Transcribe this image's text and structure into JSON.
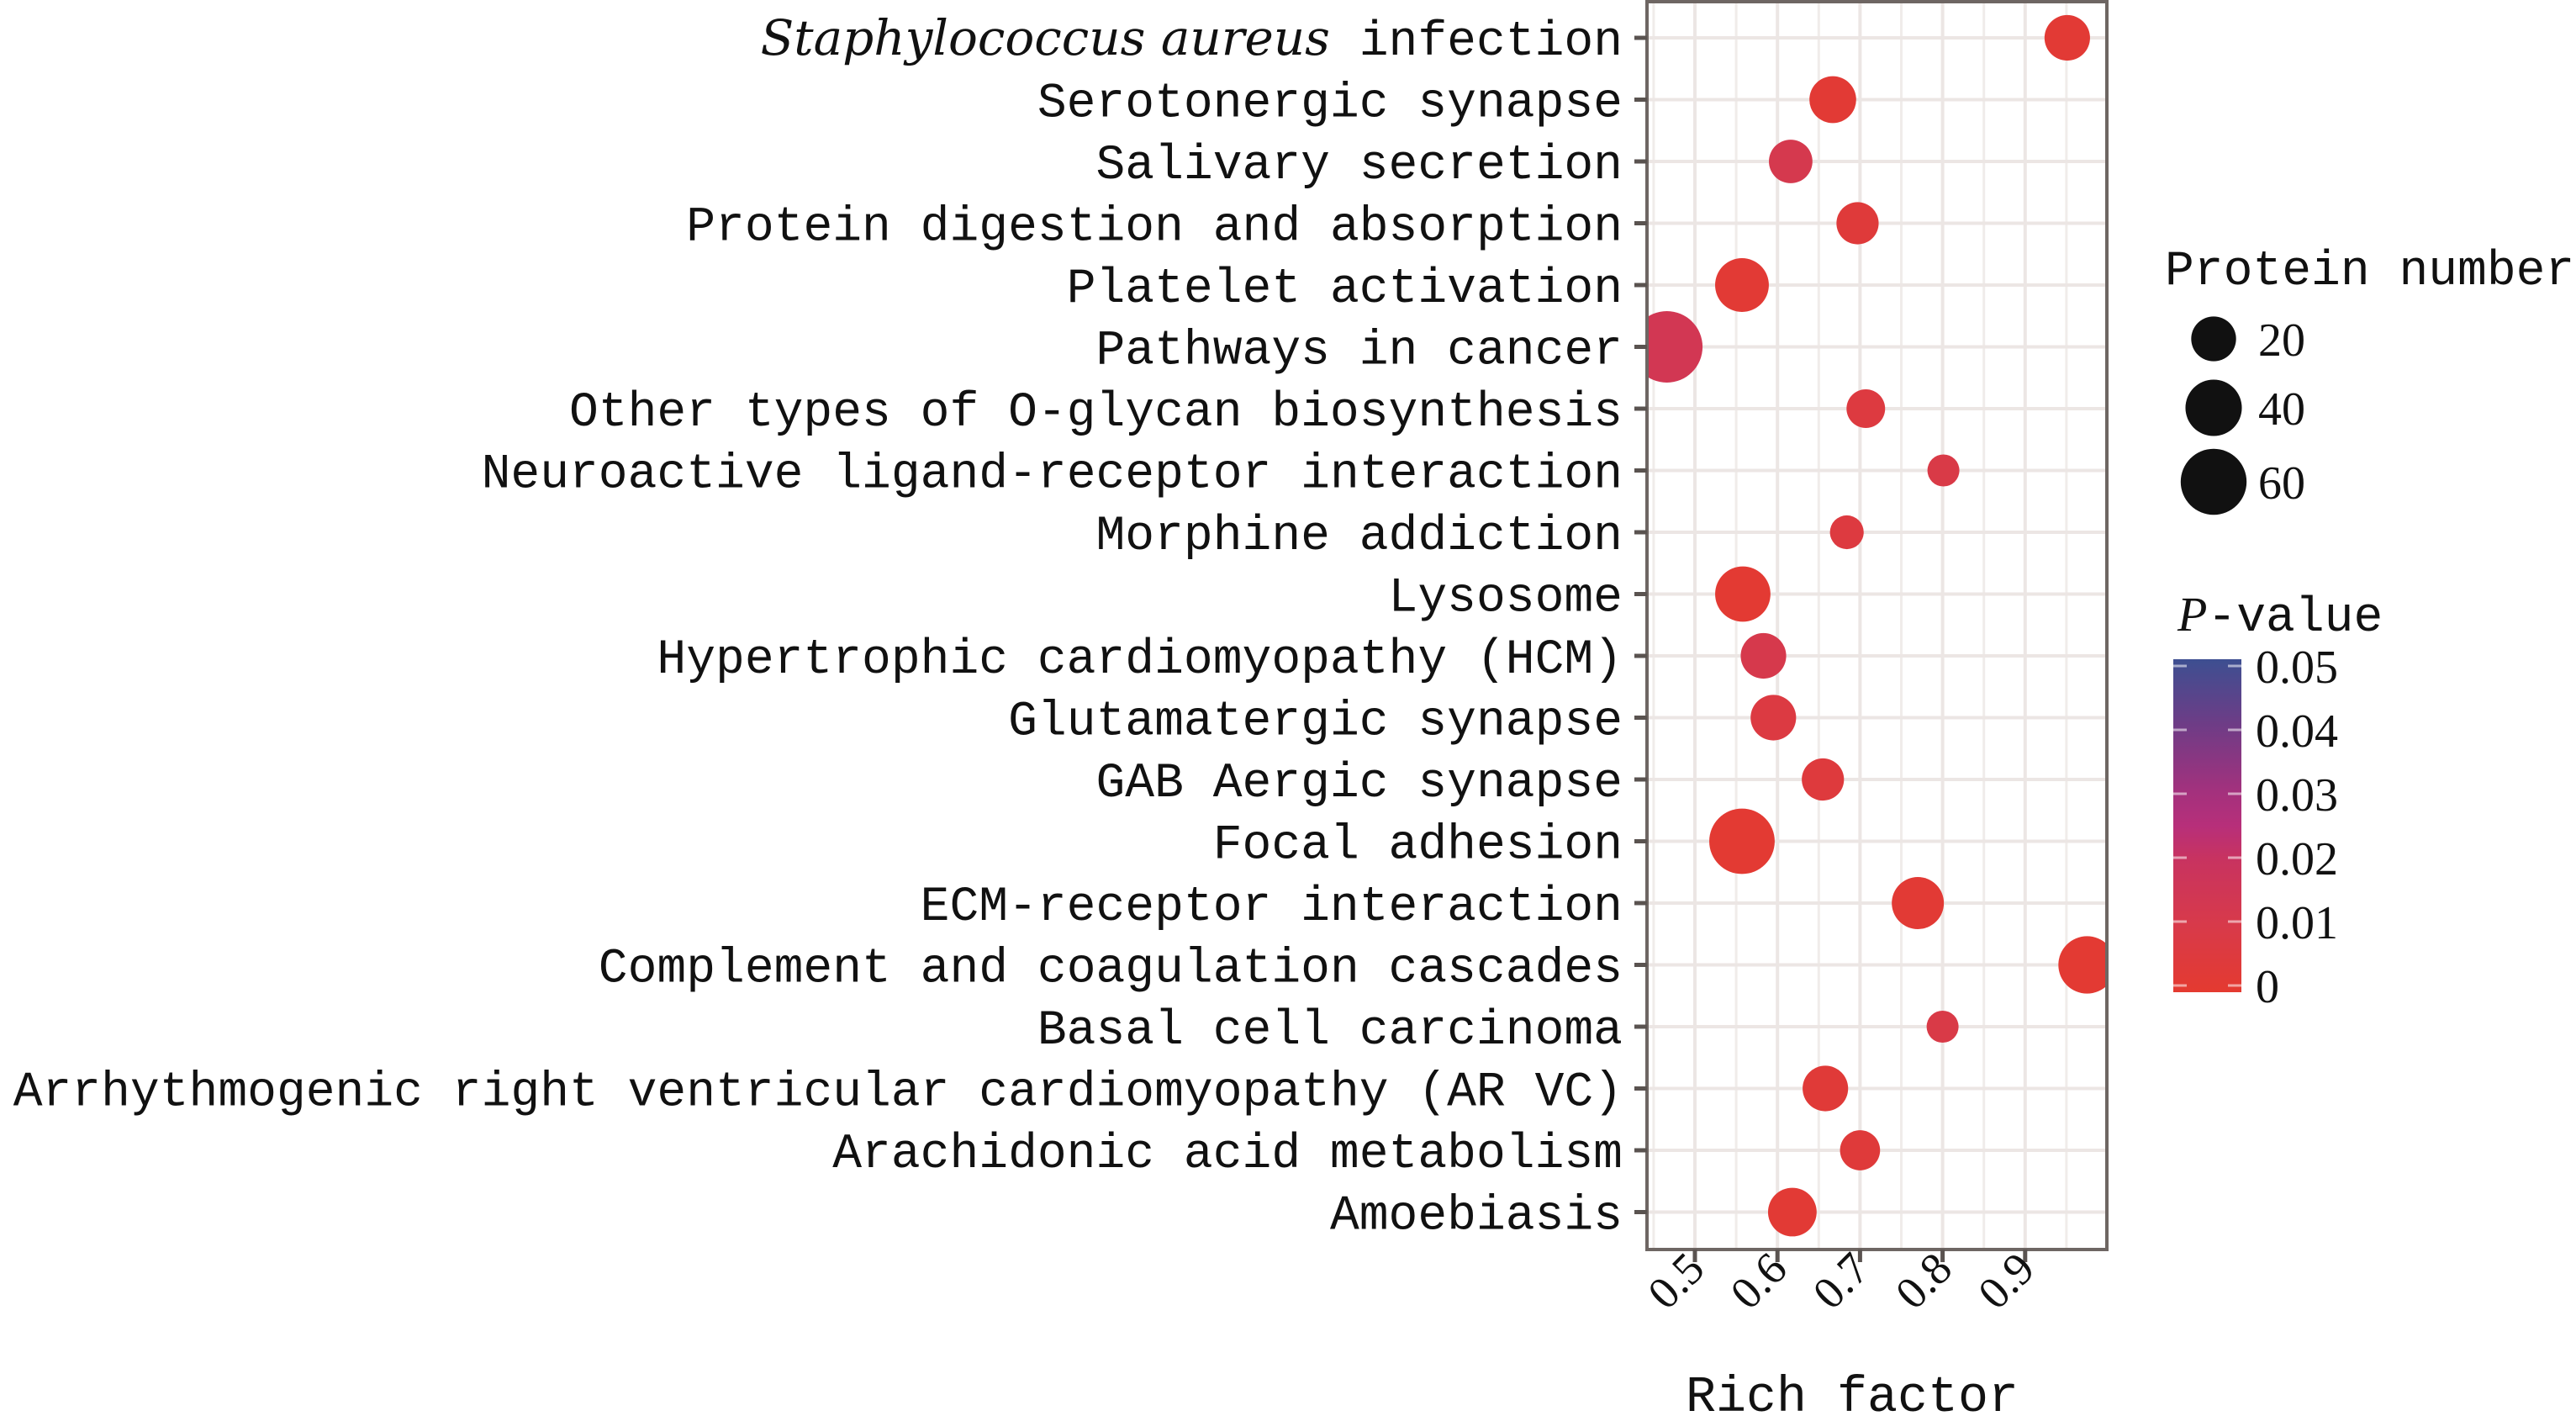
{
  "chart_data": {
    "type": "scatter",
    "subtype": "bubble",
    "title": "",
    "xlabel": "Rich factor",
    "ylabel": "",
    "xlim": [
      0.44,
      1.0
    ],
    "xticks": [
      0.5,
      0.6,
      0.7,
      0.8,
      0.9
    ],
    "xtick_labels": [
      "0.5",
      "0.6",
      "0.7",
      "0.8",
      "0.9"
    ],
    "grid": true,
    "categories": [
      "Staphylococcus aureus infection",
      "Serotonergic synapse",
      "Salivary secretion",
      "Protein digestion and absorption",
      "Platelet activation",
      "Pathways in cancer",
      "Other types of O-glycan biosynthesis",
      "Neuroactive ligand-receptor interaction",
      "Morphine addiction",
      "Lysosome",
      "Hypertrophic cardiomyopathy (HCM)",
      "Glutamatergic synapse",
      "GAB Aergic synapse",
      "Focal adhesion",
      "ECM-receptor interaction",
      "Complement and coagulation cascades",
      "Basal cell carcinoma",
      "Arrhythmogenic right ventricular cardiomyopathy (AR VC)",
      "Arachidonic acid metabolism",
      "Amoebiasis"
    ],
    "italic_prefix": {
      "0": "Staphylococcus aureus",
      "0_rest": " infection"
    },
    "points": [
      {
        "pathway": "Staphylococcus aureus infection",
        "rich_factor": 0.951,
        "protein_number": 21,
        "p_value": 0.002
      },
      {
        "pathway": "Serotonergic synapse",
        "rich_factor": 0.667,
        "protein_number": 23,
        "p_value": 0.002
      },
      {
        "pathway": "Salivary secretion",
        "rich_factor": 0.616,
        "protein_number": 18,
        "p_value": 0.012
      },
      {
        "pathway": "Protein digestion and absorption",
        "rich_factor": 0.697,
        "protein_number": 16,
        "p_value": 0.004
      },
      {
        "pathway": "Platelet activation",
        "rich_factor": 0.557,
        "protein_number": 35,
        "p_value": 0.002
      },
      {
        "pathway": "Pathways in cancer",
        "rich_factor": 0.466,
        "protein_number": 73,
        "p_value": 0.014
      },
      {
        "pathway": "Other types of O-glycan biosynthesis",
        "rich_factor": 0.707,
        "protein_number": 11,
        "p_value": 0.006
      },
      {
        "pathway": "Neuroactive ligand-receptor interaction",
        "rich_factor": 0.801,
        "protein_number": 3,
        "p_value": 0.009
      },
      {
        "pathway": "Morphine addiction",
        "rich_factor": 0.684,
        "protein_number": 5,
        "p_value": 0.006
      },
      {
        "pathway": "Lysosome",
        "rich_factor": 0.558,
        "protein_number": 38,
        "p_value": 0.001
      },
      {
        "pathway": "Hypertrophic cardiomyopathy (HCM)",
        "rich_factor": 0.583,
        "protein_number": 21,
        "p_value": 0.011
      },
      {
        "pathway": "Glutamatergic synapse",
        "rich_factor": 0.595,
        "protein_number": 21,
        "p_value": 0.007
      },
      {
        "pathway": "GAB Aergic synapse",
        "rich_factor": 0.655,
        "protein_number": 16,
        "p_value": 0.005
      },
      {
        "pathway": "Focal adhesion",
        "rich_factor": 0.557,
        "protein_number": 59,
        "p_value": 0.001
      },
      {
        "pathway": "ECM-receptor interaction",
        "rich_factor": 0.77,
        "protein_number": 32,
        "p_value": 0.002
      },
      {
        "pathway": "Complement and coagulation cascades",
        "rich_factor": 0.975,
        "protein_number": 42,
        "p_value": 0.001
      },
      {
        "pathway": "Basal cell carcinoma",
        "rich_factor": 0.8,
        "protein_number": 3,
        "p_value": 0.009
      },
      {
        "pathway": "Arrhythmogenic right ventricular cardiomyopathy (AR VC)",
        "rich_factor": 0.658,
        "protein_number": 21,
        "p_value": 0.003
      },
      {
        "pathway": "Arachidonic acid metabolism",
        "rich_factor": 0.7,
        "protein_number": 13,
        "p_value": 0.004
      },
      {
        "pathway": "Amoebiasis",
        "rich_factor": 0.618,
        "protein_number": 26,
        "p_value": 0.002
      }
    ],
    "size_legend": {
      "title": "Protein number",
      "values": [
        20,
        40,
        60
      ],
      "labels": [
        "20",
        "40",
        "60"
      ],
      "placement": "right"
    },
    "color_legend": {
      "title_italic": "P",
      "title_rest": "-value",
      "range": [
        0,
        0.05
      ],
      "ticks": [
        0.05,
        0.04,
        0.03,
        0.02,
        0.01,
        0
      ],
      "tick_labels": [
        "0.05",
        "0.04",
        "0.03",
        "0.02",
        "0.01",
        "0"
      ],
      "color_stops": [
        {
          "p": 0,
          "color": "#e43a30"
        },
        {
          "p": 0.01,
          "color": "#d83a4a"
        },
        {
          "p": 0.02,
          "color": "#c83360"
        },
        {
          "p": 0.025,
          "color": "#b72f7a"
        },
        {
          "p": 0.03,
          "color": "#a4317d"
        },
        {
          "p": 0.04,
          "color": "#6f3c86"
        },
        {
          "p": 0.05,
          "color": "#3d4f91"
        }
      ],
      "placement": "right"
    },
    "legend_marker_color": "#111111"
  }
}
